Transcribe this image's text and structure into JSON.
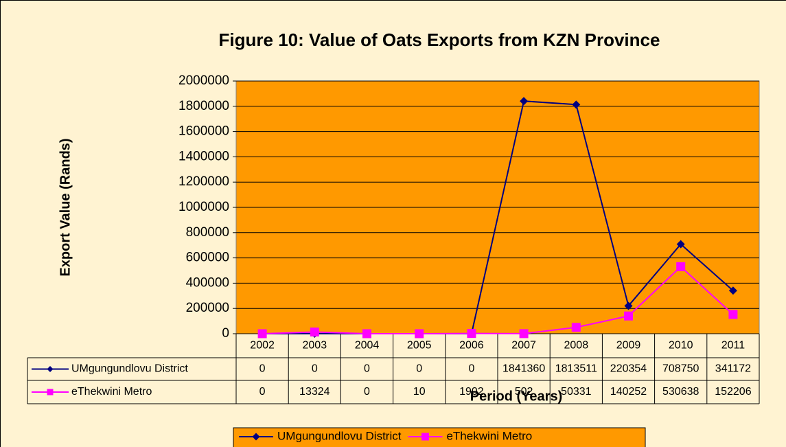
{
  "chart_data": {
    "type": "line",
    "title": "Figure 10: Value of Oats Exports from KZN Province",
    "x_label": "Period (Years)",
    "y_label": "Export Value (Rands)",
    "categories": [
      "2002",
      "2003",
      "2004",
      "2005",
      "2006",
      "2007",
      "2008",
      "2009",
      "2010",
      "2011"
    ],
    "series": [
      {
        "name": "UMgungundlovu District",
        "color": "#000080",
        "marker": "diamond",
        "values": [
          0,
          0,
          0,
          0,
          0,
          1841360,
          1813511,
          220354,
          708750,
          341172
        ]
      },
      {
        "name": "eThekwini Metro",
        "color": "#FF00FF",
        "marker": "square",
        "values": [
          0,
          13324,
          0,
          10,
          1902,
          502,
          50331,
          140252,
          530638,
          152206
        ]
      }
    ],
    "ylim": [
      0,
      2000000
    ],
    "yticks": [
      0,
      200000,
      400000,
      600000,
      800000,
      1000000,
      1200000,
      1400000,
      1600000,
      1800000,
      2000000
    ],
    "grid": true,
    "plot_color": "#FF9900",
    "legend": "bottom"
  }
}
